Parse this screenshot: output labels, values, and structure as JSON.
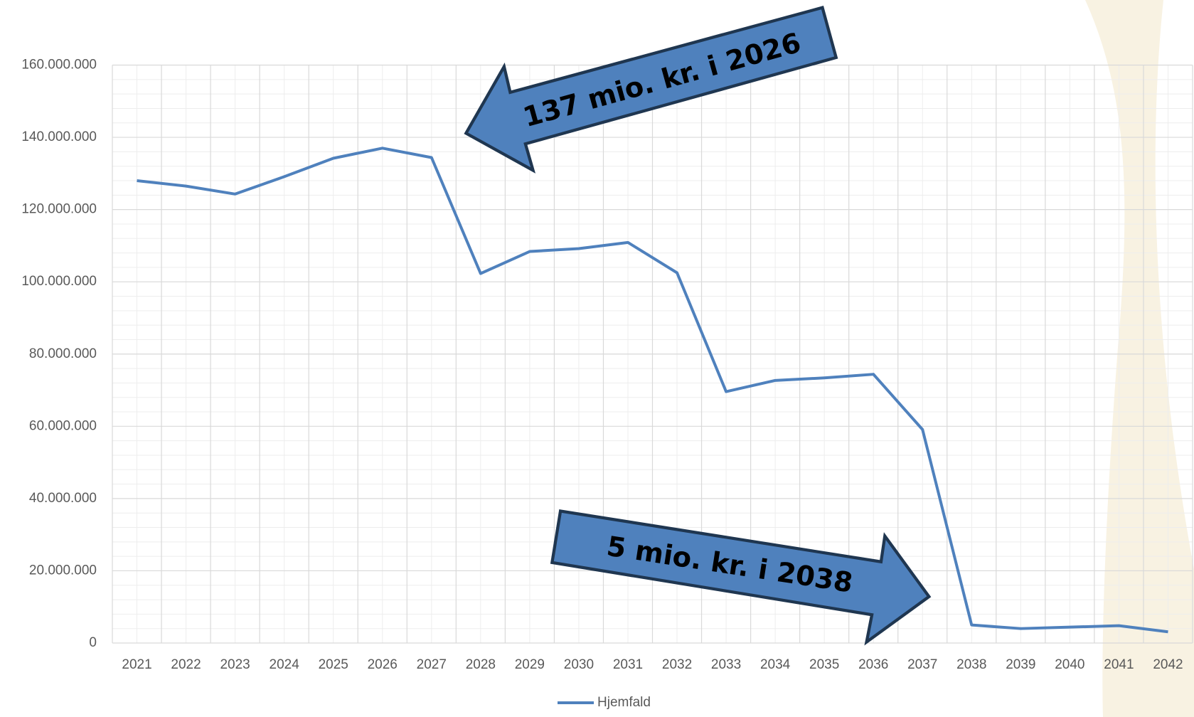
{
  "chart_data": {
    "type": "line",
    "categories": [
      "2021",
      "2022",
      "2023",
      "2024",
      "2025",
      "2026",
      "2027",
      "2028",
      "2029",
      "2030",
      "2031",
      "2032",
      "2033",
      "2034",
      "2035",
      "2036",
      "2037",
      "2038",
      "2039",
      "2040",
      "2041",
      "2042"
    ],
    "series": [
      {
        "name": "Hjemfald",
        "color": "#4f81bd",
        "values": [
          128000000,
          126500000,
          124300000,
          129100000,
          134200000,
          137000000,
          134400000,
          102300000,
          108400000,
          109200000,
          110900000,
          102500000,
          69600000,
          72700000,
          73400000,
          74400000,
          59100000,
          5000000,
          4000000,
          4400000,
          4800000,
          3100000
        ]
      }
    ],
    "ylim": [
      0,
      160000000
    ],
    "yticks": [
      0,
      {
        "value": 20000000,
        "label": "20.000.000"
      },
      {
        "value": 40000000,
        "label": "40.000.000"
      },
      {
        "value": 60000000,
        "label": "60.000.000"
      },
      {
        "value": 80000000,
        "label": "80.000.000"
      },
      {
        "value": 100000000,
        "label": "100.000.000"
      },
      {
        "value": 120000000,
        "label": "120.000.000"
      },
      {
        "value": 140000000,
        "label": "140.000.000"
      },
      {
        "value": 160000000,
        "label": "160.000.000"
      }
    ],
    "grid": true,
    "legend": "bottom",
    "annotations": [
      "137 mio. kr. i 2026",
      "5 mio. kr. i 2038"
    ]
  }
}
